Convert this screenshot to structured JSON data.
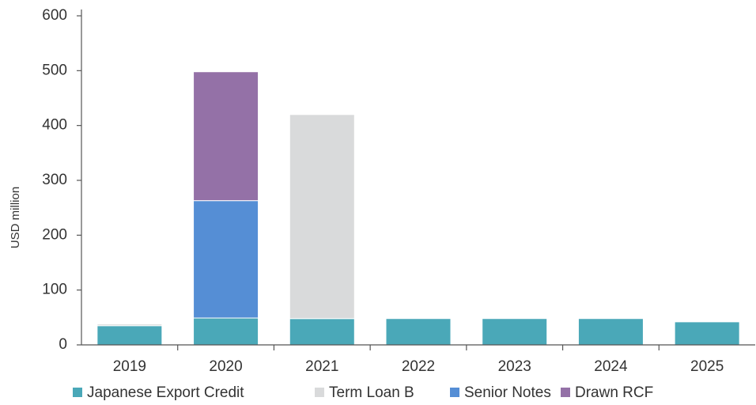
{
  "chart_data": {
    "type": "stacked_bar",
    "y_label": "USD million",
    "categories": [
      "2019",
      "2020",
      "2021",
      "2022",
      "2023",
      "2024",
      "2025"
    ],
    "series": [
      {
        "name": "Japanese Export Credit",
        "color": "#4aa8b8",
        "values": [
          35,
          49,
          48,
          48,
          48,
          48,
          42
        ]
      },
      {
        "name": "Term Loan B",
        "color": "#d9dadb",
        "values": [
          3,
          null,
          372,
          null,
          null,
          null,
          null
        ]
      },
      {
        "name": "Senior Notes",
        "color": "#558ed5",
        "values": [
          null,
          214,
          null,
          null,
          null,
          null,
          null
        ]
      },
      {
        "name": "Drawn RCF",
        "color": "#9471a7",
        "values": [
          null,
          235,
          null,
          null,
          null,
          null,
          null
        ]
      }
    ],
    "ylim": [
      0,
      600
    ],
    "yticks": [
      0,
      100,
      200,
      300,
      400,
      500,
      600
    ]
  }
}
